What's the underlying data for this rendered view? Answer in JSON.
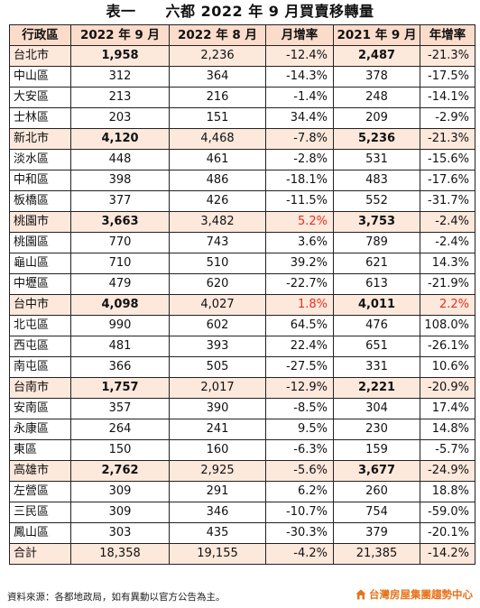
{
  "title": "表一　　六都 2022 年 9 月買賣移轉量",
  "headers": [
    "行政區",
    "2022 年 9 月",
    "2022 年 8 月",
    "月增率",
    "2021 年 9 月",
    "年增率"
  ],
  "rows": [
    {
      "name": "台北市",
      "sep22": "1,958",
      "aug22": "2,236",
      "mom": "-12.4%",
      "sep21": "2,487",
      "yoy": "-21.3%",
      "city": true
    },
    {
      "name": "中山區",
      "sep22": "312",
      "aug22": "364",
      "mom": "-14.3%",
      "sep21": "378",
      "yoy": "-17.5%"
    },
    {
      "name": "大安區",
      "sep22": "213",
      "aug22": "216",
      "mom": "-1.4%",
      "sep21": "248",
      "yoy": "-14.1%"
    },
    {
      "name": "士林區",
      "sep22": "203",
      "aug22": "151",
      "mom": "34.4%",
      "sep21": "209",
      "yoy": "-2.9%"
    },
    {
      "name": "新北市",
      "sep22": "4,120",
      "aug22": "4,468",
      "mom": "-7.8%",
      "sep21": "5,236",
      "yoy": "-21.3%",
      "city": true
    },
    {
      "name": "淡水區",
      "sep22": "448",
      "aug22": "461",
      "mom": "-2.8%",
      "sep21": "531",
      "yoy": "-15.6%"
    },
    {
      "name": "中和區",
      "sep22": "398",
      "aug22": "486",
      "mom": "-18.1%",
      "sep21": "483",
      "yoy": "-17.6%"
    },
    {
      "name": "板橋區",
      "sep22": "377",
      "aug22": "426",
      "mom": "-11.5%",
      "sep21": "552",
      "yoy": "-31.7%"
    },
    {
      "name": "桃園市",
      "sep22": "3,663",
      "aug22": "3,482",
      "mom": "5.2%",
      "sep21": "3,753",
      "yoy": "-2.4%",
      "city": true,
      "mom_red": true
    },
    {
      "name": "桃園區",
      "sep22": "770",
      "aug22": "743",
      "mom": "3.6%",
      "sep21": "789",
      "yoy": "-2.4%"
    },
    {
      "name": "龜山區",
      "sep22": "710",
      "aug22": "510",
      "mom": "39.2%",
      "sep21": "621",
      "yoy": "14.3%"
    },
    {
      "name": "中壢區",
      "sep22": "479",
      "aug22": "620",
      "mom": "-22.7%",
      "sep21": "613",
      "yoy": "-21.9%"
    },
    {
      "name": "台中市",
      "sep22": "4,098",
      "aug22": "4,027",
      "mom": "1.8%",
      "sep21": "4,011",
      "yoy": "2.2%",
      "city": true,
      "mom_red": true,
      "yoy_red": true
    },
    {
      "name": "北屯區",
      "sep22": "990",
      "aug22": "602",
      "mom": "64.5%",
      "sep21": "476",
      "yoy": "108.0%"
    },
    {
      "name": "西屯區",
      "sep22": "481",
      "aug22": "393",
      "mom": "22.4%",
      "sep21": "651",
      "yoy": "-26.1%"
    },
    {
      "name": "南屯區",
      "sep22": "366",
      "aug22": "505",
      "mom": "-27.5%",
      "sep21": "331",
      "yoy": "10.6%"
    },
    {
      "name": "台南市",
      "sep22": "1,757",
      "aug22": "2,017",
      "mom": "-12.9%",
      "sep21": "2,221",
      "yoy": "-20.9%",
      "city": true
    },
    {
      "name": "安南區",
      "sep22": "357",
      "aug22": "390",
      "mom": "-8.5%",
      "sep21": "304",
      "yoy": "17.4%"
    },
    {
      "name": "永康區",
      "sep22": "264",
      "aug22": "241",
      "mom": "9.5%",
      "sep21": "230",
      "yoy": "14.8%"
    },
    {
      "name": "東區",
      "sep22": "150",
      "aug22": "160",
      "mom": "-6.3%",
      "sep21": "159",
      "yoy": "-5.7%"
    },
    {
      "name": "高雄市",
      "sep22": "2,762",
      "aug22": "2,925",
      "mom": "-5.6%",
      "sep21": "3,677",
      "yoy": "-24.9%",
      "city": true
    },
    {
      "name": "左營區",
      "sep22": "309",
      "aug22": "291",
      "mom": "6.2%",
      "sep21": "260",
      "yoy": "18.8%"
    },
    {
      "name": "三民區",
      "sep22": "309",
      "aug22": "346",
      "mom": "-10.7%",
      "sep21": "754",
      "yoy": "-59.0%"
    },
    {
      "name": "鳳山區",
      "sep22": "303",
      "aug22": "435",
      "mom": "-30.3%",
      "sep21": "379",
      "yoy": "-20.1%"
    },
    {
      "name": "合計",
      "sep22": "18,358",
      "aug22": "19,155",
      "mom": "-4.2%",
      "sep21": "21,385",
      "yoy": "-14.2%",
      "total": true
    }
  ],
  "footer": "資料來源：各都地政局，如有異動以官方公告為主。",
  "logo_text": "台灣房屋集團趨勢中心",
  "colors": {
    "header_bg": "#fbdccb",
    "city_bg": "#fde8dc",
    "highlight_red": "#e8301e",
    "logo_orange": "#e6731b"
  }
}
